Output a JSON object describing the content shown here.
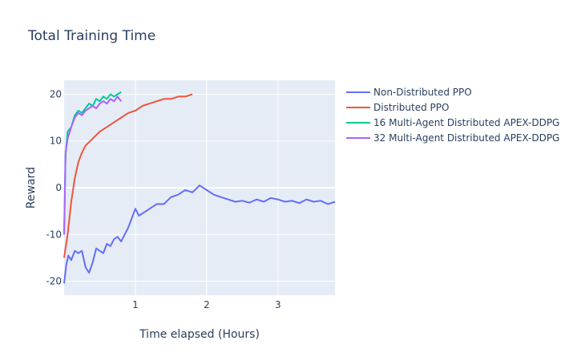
{
  "chart_data": {
    "type": "line",
    "title": "Total Training Time",
    "xlabel": "Time elapsed (Hours)",
    "ylabel": "Reward",
    "xlim": [
      0.0,
      3.8
    ],
    "ylim": [
      -23,
      23
    ],
    "xticks": [
      1,
      2,
      3
    ],
    "yticks": [
      -20,
      -10,
      0,
      10,
      20
    ],
    "grid": true,
    "legend_position": "right",
    "series": [
      {
        "name": "Non-Distributed PPO",
        "color": "#636efa",
        "x": [
          0.0,
          0.03,
          0.06,
          0.1,
          0.15,
          0.2,
          0.25,
          0.3,
          0.35,
          0.4,
          0.45,
          0.5,
          0.55,
          0.6,
          0.65,
          0.7,
          0.75,
          0.8,
          0.85,
          0.9,
          0.95,
          1.0,
          1.05,
          1.1,
          1.15,
          1.2,
          1.3,
          1.4,
          1.5,
          1.6,
          1.7,
          1.8,
          1.9,
          2.0,
          2.1,
          2.2,
          2.3,
          2.4,
          2.5,
          2.6,
          2.7,
          2.8,
          2.9,
          3.0,
          3.1,
          3.2,
          3.3,
          3.4,
          3.5,
          3.6,
          3.7,
          3.8
        ],
        "y": [
          -20.5,
          -16.5,
          -14.5,
          -15.5,
          -13.5,
          -14.0,
          -13.5,
          -17.0,
          -18.2,
          -16.0,
          -13.0,
          -13.5,
          -14.0,
          -12.0,
          -12.5,
          -11.0,
          -10.5,
          -11.5,
          -10.0,
          -8.5,
          -6.5,
          -4.5,
          -6.0,
          -5.5,
          -5.0,
          -4.5,
          -3.5,
          -3.5,
          -2.0,
          -1.5,
          -0.5,
          -1.0,
          0.5,
          -0.5,
          -1.5,
          -2.0,
          -2.5,
          -3.0,
          -2.8,
          -3.2,
          -2.5,
          -3.0,
          -2.2,
          -2.5,
          -3.0,
          -2.8,
          -3.3,
          -2.5,
          -3.0,
          -2.8,
          -3.5,
          -3.0
        ]
      },
      {
        "name": "Distributed PPO",
        "color": "#ef553b",
        "x": [
          0.0,
          0.05,
          0.1,
          0.15,
          0.2,
          0.25,
          0.3,
          0.4,
          0.5,
          0.6,
          0.7,
          0.8,
          0.9,
          1.0,
          1.1,
          1.2,
          1.3,
          1.4,
          1.5,
          1.6,
          1.7,
          1.8
        ],
        "y": [
          -15.0,
          -10.0,
          -3.0,
          2.0,
          5.5,
          7.5,
          9.0,
          10.5,
          12.0,
          13.0,
          14.0,
          15.0,
          16.0,
          16.5,
          17.5,
          18.0,
          18.5,
          19.0,
          19.0,
          19.5,
          19.5,
          20.0
        ]
      },
      {
        "name": "16 Multi-Agent Distributed APEX-DDPG",
        "color": "#00cc96",
        "x": [
          0.0,
          0.02,
          0.05,
          0.1,
          0.15,
          0.2,
          0.25,
          0.3,
          0.35,
          0.4,
          0.45,
          0.5,
          0.55,
          0.6,
          0.65,
          0.7,
          0.75,
          0.8
        ],
        "y": [
          -10.0,
          7.0,
          12.0,
          13.0,
          15.5,
          16.5,
          16.0,
          17.0,
          18.0,
          17.5,
          19.0,
          18.5,
          19.5,
          19.0,
          20.0,
          19.5,
          20.0,
          20.5
        ]
      },
      {
        "name": "32 Multi-Agent Distributed APEX-DDPG",
        "color": "#ab63fa",
        "x": [
          0.0,
          0.02,
          0.05,
          0.1,
          0.15,
          0.2,
          0.25,
          0.3,
          0.35,
          0.4,
          0.45,
          0.5,
          0.55,
          0.6,
          0.65,
          0.7,
          0.75,
          0.8
        ],
        "y": [
          -10.0,
          7.5,
          10.5,
          13.0,
          15.0,
          16.0,
          15.5,
          16.5,
          17.0,
          17.5,
          17.0,
          18.0,
          18.5,
          18.0,
          19.0,
          18.5,
          19.5,
          18.5
        ]
      }
    ]
  }
}
